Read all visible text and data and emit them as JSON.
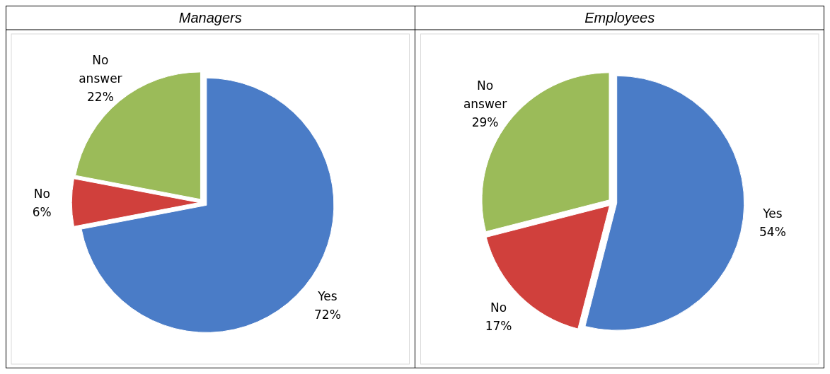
{
  "chart_data": [
    {
      "type": "pie",
      "title": "Managers",
      "categories": [
        "Yes",
        "No",
        "No answer"
      ],
      "values": [
        72,
        6,
        22
      ],
      "value_labels": [
        "72%",
        "6%",
        "22%"
      ],
      "colors": [
        "#4a7cc7",
        "#d0403c",
        "#9bbb59"
      ]
    },
    {
      "type": "pie",
      "title": "Employees",
      "categories": [
        "Yes",
        "No",
        "No answer"
      ],
      "values": [
        54,
        17,
        29
      ],
      "value_labels": [
        "54%",
        "17%",
        "29%"
      ],
      "colors": [
        "#4a7cc7",
        "#d0403c",
        "#9bbb59"
      ]
    }
  ]
}
